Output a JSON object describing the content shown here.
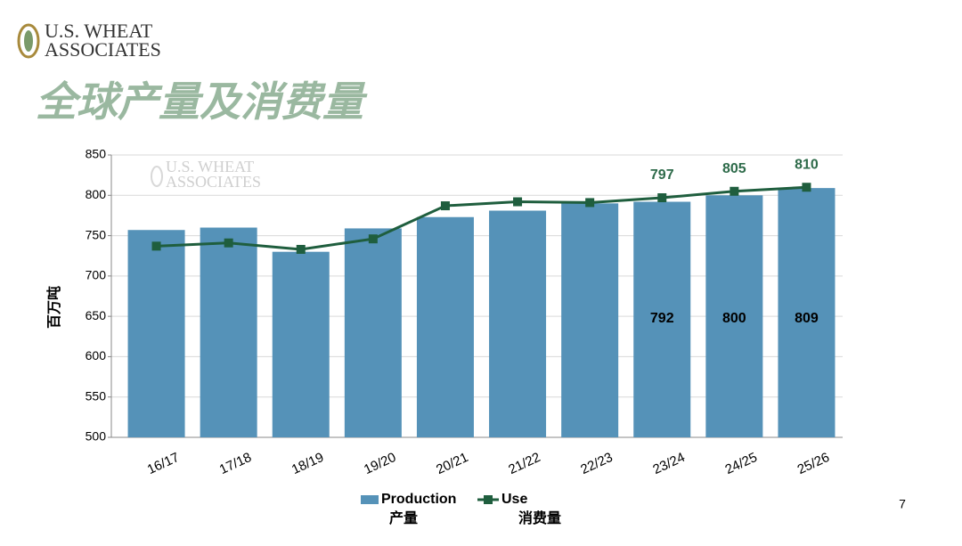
{
  "logo": {
    "line1": "U.S. WHEAT",
    "line2": "ASSOCIATES"
  },
  "page_number": "7",
  "chart_data": {
    "type": "bar_line",
    "title": "全球产量及消费量",
    "y_label": "百万吨",
    "categories": [
      "16/17",
      "17/18",
      "18/19",
      "19/20",
      "20/21",
      "21/22",
      "22/23",
      "23/24",
      "24/25",
      "25/26"
    ],
    "series": [
      {
        "name": "Production",
        "name_zh": "产量",
        "type": "bar",
        "color": "#5592b8",
        "values": [
          757,
          760,
          730,
          759,
          773,
          781,
          790,
          792,
          800,
          809
        ],
        "value_labels": [
          null,
          null,
          null,
          null,
          null,
          null,
          null,
          "792",
          "800",
          "809"
        ]
      },
      {
        "name": "Use",
        "name_zh": "消费量",
        "type": "line",
        "color": "#1f5e3e",
        "values": [
          737,
          741,
          733,
          746,
          787,
          792,
          791,
          797,
          805,
          810
        ],
        "value_labels": [
          null,
          null,
          null,
          null,
          null,
          null,
          null,
          "797",
          "805",
          "810"
        ]
      }
    ],
    "ylim": [
      500,
      850
    ],
    "yticks": [
      500,
      550,
      600,
      650,
      700,
      750,
      800,
      850
    ],
    "grid": true
  }
}
